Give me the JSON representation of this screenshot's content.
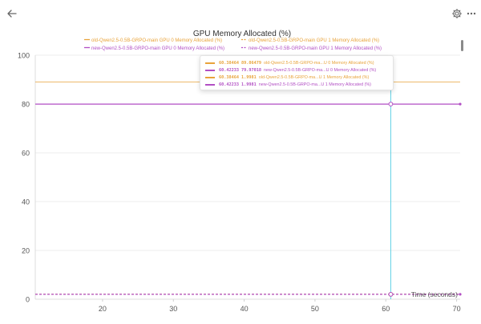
{
  "header": {
    "back_icon": "arrow-left-icon",
    "settings_icon": "gear-icon",
    "more_icon": "more-horizontal-icon"
  },
  "chart_data": {
    "type": "line",
    "title": "GPU Memory Allocated (%)",
    "xlabel": "Time (seconds)",
    "ylabel": "",
    "xlim": [
      10.5,
      70.5
    ],
    "ylim": [
      0,
      100
    ],
    "x_ticks": [
      20,
      30,
      40,
      50,
      60,
      70
    ],
    "y_ticks": [
      0,
      20,
      40,
      60,
      80,
      100
    ],
    "grid": true,
    "legend_position": "top",
    "hover_x": 60.7,
    "series": [
      {
        "name": "old-Qwen2.5-0.5B-GRPO-main GPU 0 Memory Allocated (%)",
        "color": "#e8a33a",
        "dash": false,
        "x": [
          10.5,
          70.5
        ],
        "values": [
          89.06479,
          89.06479
        ]
      },
      {
        "name": "old-Qwen2.5-0.5B-GRPO-main GPU 1 Memory Allocated (%)",
        "color": "#e8a33a",
        "dash": true,
        "x": [
          10.5,
          70.5
        ],
        "values": [
          1.9981,
          1.9981
        ]
      },
      {
        "name": "new-Qwen2.5-0.5B-GRPO-main GPU 0 Memory Allocated (%)",
        "color": "#b24fc4",
        "dash": false,
        "x": [
          10.5,
          70.5
        ],
        "values": [
          79.97018,
          79.97018
        ]
      },
      {
        "name": "new-Qwen2.5-0.5B-GRPO-main GPU 1 Memory Allocated (%)",
        "color": "#b24fc4",
        "dash": true,
        "x": [
          10.5,
          70.5
        ],
        "values": [
          1.9981,
          1.9981
        ]
      }
    ],
    "tooltip": [
      {
        "x_value": "60.38464",
        "value": "89.06479",
        "name": "old-Qwen2.5-0.5B-GRPO-ma...U 0 Memory Allocated (%)",
        "color": "#e8a33a",
        "dash": false
      },
      {
        "x_value": "60.42233",
        "value": "79.97018",
        "name": "new-Qwen2.5-0.5B-GRPO-ma...U 0 Memory Allocated (%)",
        "color": "#b24fc4",
        "dash": false
      },
      {
        "x_value": "60.38464",
        "value": "1.9981",
        "name": "old-Qwen2.5-0.5B-GRPO-ma...U 1 Memory Allocated (%)",
        "color": "#e8a33a",
        "dash": true
      },
      {
        "x_value": "60.42233",
        "value": "1.9981",
        "name": "new-Qwen2.5-0.5B-GRPO-ma...U 1 Memory Allocated (%)",
        "color": "#b24fc4",
        "dash": true
      }
    ]
  }
}
